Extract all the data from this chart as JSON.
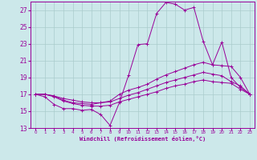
{
  "xlabel": "Windchill (Refroidissement éolien,°C)",
  "bg_color": "#cce8ea",
  "grid_color": "#aacccc",
  "line_color": "#990099",
  "xlim": [
    -0.5,
    23.5
  ],
  "ylim": [
    13,
    28
  ],
  "xticks": [
    0,
    1,
    2,
    3,
    4,
    5,
    6,
    7,
    8,
    9,
    10,
    11,
    12,
    13,
    14,
    15,
    16,
    17,
    18,
    19,
    20,
    21,
    22,
    23
  ],
  "yticks": [
    13,
    15,
    17,
    19,
    21,
    23,
    25,
    27
  ],
  "series": [
    {
      "x": [
        0,
        1,
        2,
        3,
        4,
        5,
        6,
        7,
        8,
        9,
        10,
        11,
        12,
        13,
        14,
        15,
        16,
        17,
        18,
        19,
        20,
        21,
        22,
        23
      ],
      "y": [
        17.0,
        16.7,
        15.8,
        15.3,
        15.3,
        15.1,
        15.2,
        14.6,
        13.3,
        16.0,
        19.3,
        22.9,
        23.0,
        26.6,
        27.9,
        27.7,
        27.0,
        27.3,
        23.3,
        20.5,
        23.2,
        19.0,
        17.8,
        17.0
      ]
    },
    {
      "x": [
        0,
        1,
        2,
        3,
        4,
        5,
        6,
        7,
        8,
        9,
        10,
        11,
        12,
        13,
        14,
        15,
        16,
        17,
        18,
        19,
        20,
        21,
        22,
        23
      ],
      "y": [
        17.0,
        17.0,
        16.8,
        16.3,
        16.0,
        15.9,
        15.8,
        16.0,
        16.2,
        17.0,
        17.5,
        17.8,
        18.2,
        18.8,
        19.3,
        19.7,
        20.1,
        20.5,
        20.8,
        20.5,
        20.4,
        20.3,
        19.0,
        17.0
      ]
    },
    {
      "x": [
        0,
        1,
        2,
        3,
        4,
        5,
        6,
        7,
        8,
        9,
        10,
        11,
        12,
        13,
        14,
        15,
        16,
        17,
        18,
        19,
        20,
        21,
        22,
        23
      ],
      "y": [
        17.0,
        17.0,
        16.8,
        16.5,
        16.3,
        16.1,
        16.0,
        16.0,
        16.1,
        16.5,
        16.9,
        17.2,
        17.6,
        18.0,
        18.4,
        18.7,
        19.0,
        19.3,
        19.6,
        19.4,
        19.2,
        18.5,
        18.0,
        17.0
      ]
    },
    {
      "x": [
        0,
        1,
        2,
        3,
        4,
        5,
        6,
        7,
        8,
        9,
        10,
        11,
        12,
        13,
        14,
        15,
        16,
        17,
        18,
        19,
        20,
        21,
        22,
        23
      ],
      "y": [
        17.0,
        17.0,
        16.7,
        16.2,
        15.9,
        15.7,
        15.6,
        15.6,
        15.7,
        16.1,
        16.4,
        16.7,
        17.0,
        17.3,
        17.7,
        18.0,
        18.2,
        18.5,
        18.7,
        18.5,
        18.4,
        18.3,
        17.6,
        17.0
      ]
    }
  ]
}
